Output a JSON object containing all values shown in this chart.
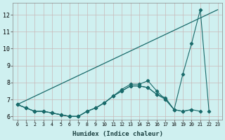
{
  "xlabel": "Humidex (Indice chaleur)",
  "background_color": "#cff0f0",
  "grid_color": "#c8b8b8",
  "line_color": "#1a6b6b",
  "xlim": [
    -0.5,
    23.5
  ],
  "ylim": [
    5.8,
    12.7
  ],
  "yticks": [
    6,
    7,
    8,
    9,
    10,
    11,
    12
  ],
  "xticks": [
    0,
    1,
    2,
    3,
    4,
    5,
    6,
    7,
    8,
    9,
    10,
    11,
    12,
    13,
    14,
    15,
    16,
    17,
    18,
    19,
    20,
    21,
    22,
    23
  ],
  "series": [
    {
      "x": [
        0,
        23
      ],
      "y": [
        6.7,
        12.3
      ]
    },
    {
      "x": [
        0,
        1,
        2,
        3,
        4,
        5,
        6,
        7,
        8,
        9,
        10,
        11,
        12,
        13,
        14,
        15,
        16,
        17,
        18,
        19,
        20,
        21,
        22
      ],
      "y": [
        6.7,
        6.5,
        6.3,
        6.3,
        6.2,
        6.1,
        6.0,
        6.0,
        6.3,
        6.5,
        6.8,
        7.2,
        7.5,
        7.8,
        7.8,
        7.7,
        7.3,
        7.1,
        6.4,
        8.5,
        10.3,
        12.3,
        6.3
      ]
    },
    {
      "x": [
        0,
        1,
        2,
        3,
        4,
        5,
        6,
        7,
        8,
        9,
        10,
        11,
        12,
        13,
        14,
        15,
        16,
        17,
        18,
        19,
        20
      ],
      "y": [
        6.7,
        6.5,
        6.3,
        6.3,
        6.2,
        6.1,
        6.0,
        6.0,
        6.3,
        6.5,
        6.8,
        7.2,
        7.5,
        7.8,
        7.8,
        7.7,
        7.3,
        7.0,
        6.4,
        6.3,
        6.4
      ]
    },
    {
      "x": [
        0,
        1,
        2,
        3,
        4,
        5,
        6,
        7,
        8,
        9,
        10,
        11,
        12,
        13,
        14,
        15,
        16,
        17,
        18,
        19,
        20,
        21
      ],
      "y": [
        6.7,
        6.5,
        6.3,
        6.3,
        6.2,
        6.1,
        6.0,
        6.0,
        6.3,
        6.5,
        6.8,
        7.2,
        7.6,
        7.9,
        7.9,
        8.1,
        7.5,
        7.0,
        6.4,
        6.3,
        6.4,
        6.3
      ]
    }
  ]
}
